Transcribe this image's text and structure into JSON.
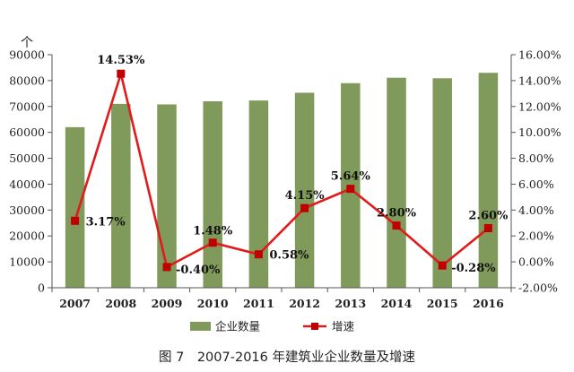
{
  "figure": {
    "caption": "图 7　2007-2016 年建筑业企业数量及增速"
  },
  "chart_data": {
    "type": "bar",
    "categories": [
      "2007",
      "2008",
      "2009",
      "2010",
      "2011",
      "2012",
      "2013",
      "2014",
      "2015",
      "2016"
    ],
    "series": [
      {
        "name": "企业数量",
        "type": "bar",
        "axis": "left",
        "color": "#7f9a5a",
        "values": [
          62000,
          71000,
          70800,
          72000,
          72300,
          75300,
          79000,
          81100,
          80900,
          83000
        ]
      },
      {
        "name": "增速",
        "type": "line",
        "axis": "right",
        "color": "#e01b1b",
        "marker_color": "#c00000",
        "values": [
          3.17,
          14.53,
          -0.4,
          1.48,
          0.58,
          4.15,
          5.64,
          2.8,
          -0.28,
          2.6
        ],
        "labels": [
          "3.17%",
          "14.53%",
          "-0.40%",
          "1.48%",
          "0.58%",
          "4.15%",
          "5.64%",
          "2.80%",
          "-0.28%",
          "2.60%"
        ]
      }
    ],
    "left_axis": {
      "unit": "个",
      "ylim": [
        0,
        90000
      ],
      "ticks": [
        0,
        10000,
        20000,
        30000,
        40000,
        50000,
        60000,
        70000,
        80000,
        90000
      ],
      "tick_labels": [
        "0",
        "10000",
        "20000",
        "30000",
        "40000",
        "50000",
        "60000",
        "70000",
        "80000",
        "90000"
      ]
    },
    "right_axis": {
      "ylim": [
        -2,
        16
      ],
      "ticks": [
        -2,
        0,
        2,
        4,
        6,
        8,
        10,
        12,
        14,
        16
      ],
      "tick_labels": [
        "-2.00%",
        "0.00%",
        "2.00%",
        "4.00%",
        "6.00%",
        "8.00%",
        "10.00%",
        "12.00%",
        "14.00%",
        "16.00%"
      ]
    },
    "grid": false,
    "legend": {
      "position": "bottom",
      "entries": [
        "企业数量",
        "增速"
      ]
    }
  }
}
